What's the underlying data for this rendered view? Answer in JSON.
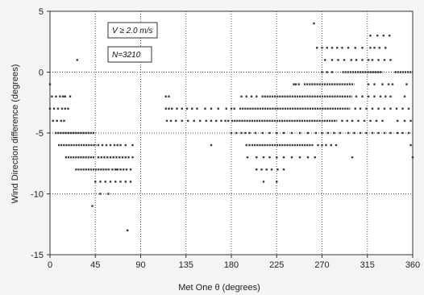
{
  "chart_data": {
    "type": "scatter",
    "title": "",
    "xlabel": "Met One θ (degrees)",
    "ylabel": "Wind Direction difference (degrees)",
    "xlim": [
      0,
      360
    ],
    "ylim": [
      -15,
      5
    ],
    "xticks": [
      0,
      45,
      90,
      135,
      180,
      225,
      270,
      315,
      360
    ],
    "yticks": [
      5,
      0,
      -5,
      -10,
      -15
    ],
    "grid": true,
    "grid_style": "dotted",
    "annotations": [
      "V ≥ 2.0 m/s",
      "N=3210"
    ],
    "series": [
      {
        "rows": [
          {
            "y": 4,
            "points": [
              262
            ]
          },
          {
            "y": 3,
            "points": [
              318,
              325,
              331,
              337
            ]
          },
          {
            "y": 2,
            "points": [
              265,
              270,
              275,
              280,
              285,
              290,
              296,
              303,
              310,
              318,
              322,
              327,
              333
            ]
          },
          {
            "y": 1,
            "points": [
              27,
              273,
              280,
              286,
              292,
              299,
              304,
              310,
              316,
              320,
              326,
              332,
              338
            ]
          },
          {
            "y": 0,
            "segments": [
              [
                290,
                330
              ],
              [
                342,
                360
              ]
            ],
            "points": [
              270,
              275,
              280
            ]
          },
          {
            "y": -1,
            "segments": [
              [
                252,
                302
              ]
            ],
            "points": [
              0,
              242,
              244,
              247,
              316,
              322,
              330,
              336,
              340,
              354
            ]
          },
          {
            "y": -2,
            "segments": [
              [
                210,
                300
              ]
            ],
            "points": [
              2,
              6,
              10,
              13,
              15,
              20,
              115,
              118,
              190,
              195,
              200,
              205,
              304,
              310,
              316,
              322,
              328,
              333,
              338,
              352
            ]
          },
          {
            "y": -3,
            "segments": [
              [
                188,
                298
              ]
            ],
            "points": [
              0,
              4,
              8,
              12,
              15,
              18,
              115,
              118,
              121,
              126,
              131,
              136,
              141,
              146,
              154,
              160,
              167,
              175,
              180,
              183,
              303,
              308,
              314,
              320,
              326,
              332,
              338,
              344,
              350,
              356
            ]
          },
          {
            "y": -4,
            "segments": [
              [
                180,
                285
              ]
            ],
            "points": [
              3,
              7,
              11,
              14,
              116,
              120,
              125,
              131,
              137,
              143,
              149,
              155,
              160,
              165,
              170,
              174,
              177,
              290,
              295,
              300,
              306,
              312,
              318,
              324,
              330,
              345,
              352,
              358
            ]
          },
          {
            "y": -5,
            "segments": [
              [
                5,
                45
              ]
            ],
            "points": [
              180,
              185,
              190,
              194,
              198,
              204,
              211,
              218,
              225,
              232,
              240,
              248,
              256,
              264,
              270,
              276,
              282,
              288,
              296,
              302,
              308,
              314,
              320,
              326,
              332,
              338,
              345,
              350,
              356
            ]
          },
          {
            "y": -6,
            "segments": [
              [
                8,
                46
              ],
              [
                200,
                262
              ]
            ],
            "points": [
              48,
              52,
              56,
              60,
              64,
              67,
              70,
              75,
              82,
              160,
              195,
              198,
              266,
              270,
              274,
              279,
              284,
              358
            ]
          },
          {
            "y": -7,
            "segments": [
              [
                15,
                45
              ]
            ],
            "points": [
              48,
              51,
              54,
              57,
              60,
              63,
              66,
              69,
              72,
              75,
              78,
              82,
              196,
              205,
              212,
              218,
              225,
              232,
              240,
              248,
              256,
              263,
              300,
              360
            ]
          },
          {
            "y": -8,
            "segments": [
              [
                25,
                60
              ]
            ],
            "points": [
              62,
              65,
              67,
              70,
              73,
              76,
              80,
              205,
              210,
              215,
              220,
              226,
              232
            ]
          },
          {
            "y": -9,
            "points": [
              45,
              50,
              55,
              60,
              65,
              70,
              75,
              80,
              212,
              225
            ]
          },
          {
            "y": -10,
            "points": [
              50,
              58
            ]
          },
          {
            "y": -11,
            "points": [
              42
            ]
          },
          {
            "y": -13,
            "points": [
              77
            ]
          }
        ]
      }
    ]
  }
}
